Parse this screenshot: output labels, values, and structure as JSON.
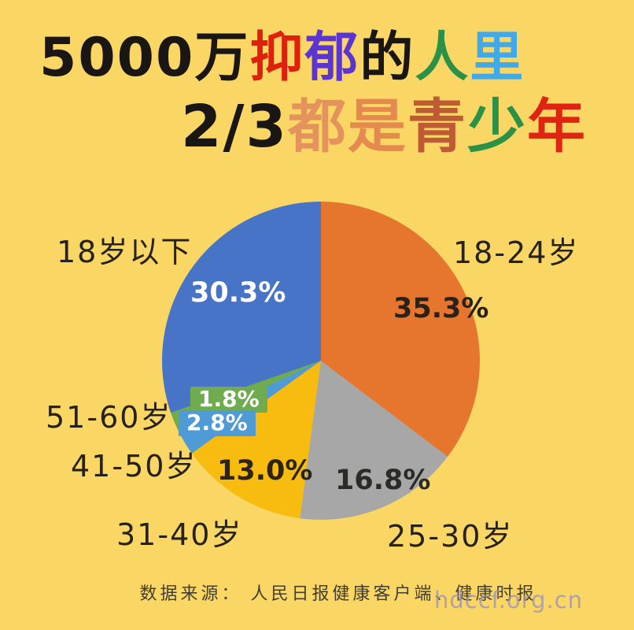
{
  "background_color": "#FAD765",
  "title": {
    "full_text_line1": "5000万抑郁的人里",
    "full_text_line2": "2/3都是青少年",
    "line1": [
      {
        "ch": "5",
        "color": "#1A1613"
      },
      {
        "ch": "0",
        "color": "#1A1613"
      },
      {
        "ch": "0",
        "color": "#1A1613"
      },
      {
        "ch": "0",
        "color": "#1A1613"
      },
      {
        "ch": "万",
        "color": "#1A1613"
      },
      {
        "ch": "抑",
        "color": "#E0200F"
      },
      {
        "ch": "郁",
        "color": "#5A35D2"
      },
      {
        "ch": "的",
        "color": "#1A1613"
      },
      {
        "ch": "人",
        "color": "#2B9147"
      },
      {
        "ch": "里",
        "color": "#3FA9E9"
      }
    ],
    "line2": [
      {
        "ch": "2",
        "color": "#1A1613"
      },
      {
        "ch": "/",
        "color": "#1A1613"
      },
      {
        "ch": "3",
        "color": "#1A1613"
      },
      {
        "ch": "都",
        "color": "#E5935C"
      },
      {
        "ch": "是",
        "color": "#E58A4E"
      },
      {
        "ch": "青",
        "color": "#BE5B35"
      },
      {
        "ch": "少",
        "color": "#2B9147"
      },
      {
        "ch": "年",
        "color": "#E02312"
      }
    ]
  },
  "chart_data": {
    "type": "pie",
    "title": "5000万抑郁的人里 2/3都是青少年",
    "start_angle_deg": 0,
    "direction": "clockwise",
    "legend_position": "labels-around-pie",
    "slices": [
      {
        "label": "18-24岁",
        "value": 35.3,
        "pct_label": "35.3%",
        "color": "#E6762E"
      },
      {
        "label": "25-30岁",
        "value": 16.8,
        "pct_label": "16.8%",
        "color": "#A7A7A7"
      },
      {
        "label": "31-40岁",
        "value": 13.0,
        "pct_label": "13.0%",
        "color": "#F8BB10"
      },
      {
        "label": "41-50岁",
        "value": 2.8,
        "pct_label": "2.8%",
        "color": "#4F9BD5"
      },
      {
        "label": "51-60岁",
        "value": 1.8,
        "pct_label": "1.8%",
        "color": "#6EAC4F"
      },
      {
        "label": "18岁以下",
        "value": 30.3,
        "pct_label": "30.3%",
        "color": "#4874C8"
      }
    ]
  },
  "footer": {
    "source_text": "数据来源： 人民日报健康客户端、健康时报",
    "watermark": "hdccf.org.cn"
  }
}
